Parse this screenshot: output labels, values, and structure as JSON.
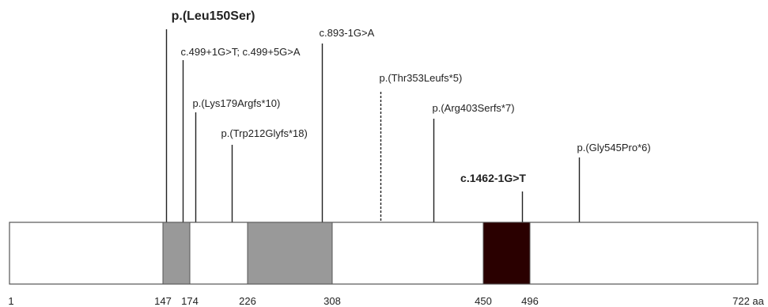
{
  "protein": {
    "start_label": "1",
    "end_label": "722 aa",
    "length": 722,
    "border_color": "#555555",
    "fill_color": "#ffffff"
  },
  "domains": [
    {
      "start": 147,
      "end": 174,
      "color": "#999999"
    },
    {
      "start": 226,
      "end": 308,
      "color": "#999999"
    },
    {
      "start": 450,
      "end": 496,
      "color": "#2a0000"
    }
  ],
  "ticks": [
    {
      "pos": 147,
      "label": "147"
    },
    {
      "pos": 174,
      "label": "174"
    },
    {
      "pos": 226,
      "label": "226"
    },
    {
      "pos": 308,
      "label": "308"
    },
    {
      "pos": 450,
      "label": "450"
    },
    {
      "pos": 496,
      "label": "496"
    }
  ],
  "variants": [
    {
      "label": "p.(Leu150Ser)",
      "pos": 150,
      "bold": true,
      "dashed": false
    },
    {
      "label": "c.499+1G>T; c.499+5G>A",
      "pos": 167,
      "bold": false,
      "dashed": false
    },
    {
      "label": "p.(Lys179Argfs*10)",
      "pos": 179,
      "bold": false,
      "dashed": false
    },
    {
      "label": "p.(Trp212Glyfs*18)",
      "pos": 212,
      "bold": false,
      "dashed": false
    },
    {
      "label": "c.893-1G>A",
      "pos": 298,
      "bold": false,
      "dashed": false
    },
    {
      "label": "p.(Thr353Leufs*5)",
      "pos": 353,
      "bold": false,
      "dashed": true
    },
    {
      "label": "p.(Arg403Serfs*7)",
      "pos": 403,
      "bold": false,
      "dashed": false
    },
    {
      "label": "c.1462-1G>T",
      "pos": 488,
      "bold": true,
      "dashed": false
    },
    {
      "label": "p.(Gly545Pro*6)",
      "pos": 545,
      "bold": false,
      "dashed": false
    }
  ]
}
